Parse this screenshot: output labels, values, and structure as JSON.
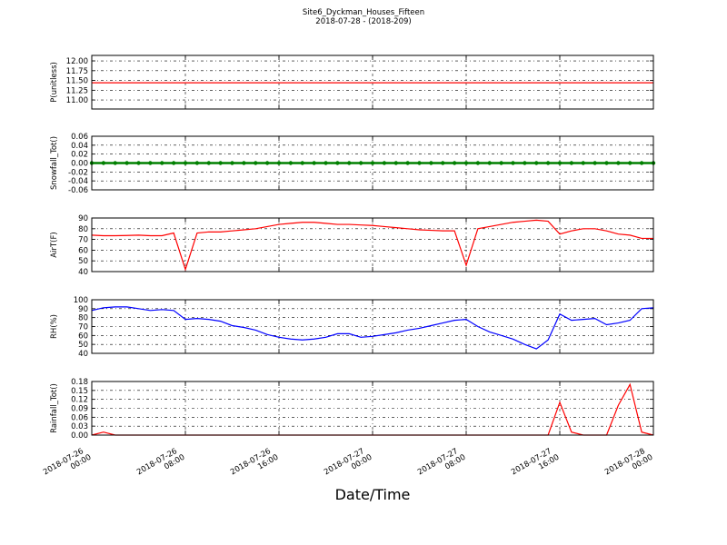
{
  "figure": {
    "title": "Site6_Dyckman_Houses_Fifteen",
    "subtitle": "2018-07-28 - (2018-209)",
    "xlabel": "Date/Time",
    "xlim": [
      "2018-07-26 00:00",
      "2018-07-28 00:00"
    ],
    "xticks": [
      {
        "value": "2018-07-26 00:00",
        "label": [
          "2018-07-26",
          "00:00"
        ]
      },
      {
        "value": "2018-07-26 08:00",
        "label": [
          "2018-07-26",
          "08:00"
        ]
      },
      {
        "value": "2018-07-26 16:00",
        "label": [
          "2018-07-26",
          "16:00"
        ]
      },
      {
        "value": "2018-07-27 00:00",
        "label": [
          "2018-07-27",
          "00:00"
        ]
      },
      {
        "value": "2018-07-27 08:00",
        "label": [
          "2018-07-27",
          "08:00"
        ]
      },
      {
        "value": "2018-07-27 16:00",
        "label": [
          "2018-07-27",
          "16:00"
        ]
      },
      {
        "value": "2018-07-28 00:00",
        "label": [
          "2018-07-28",
          "00:00"
        ]
      }
    ],
    "x": [
      "2018-07-26 00:00",
      "2018-07-26 01:00",
      "2018-07-26 02:00",
      "2018-07-26 03:00",
      "2018-07-26 04:00",
      "2018-07-26 05:00",
      "2018-07-26 06:00",
      "2018-07-26 07:00",
      "2018-07-26 08:00",
      "2018-07-26 09:00",
      "2018-07-26 10:00",
      "2018-07-26 11:00",
      "2018-07-26 12:00",
      "2018-07-26 13:00",
      "2018-07-26 14:00",
      "2018-07-26 15:00",
      "2018-07-26 16:00",
      "2018-07-26 17:00",
      "2018-07-26 18:00",
      "2018-07-26 19:00",
      "2018-07-26 20:00",
      "2018-07-26 21:00",
      "2018-07-26 22:00",
      "2018-07-26 23:00",
      "2018-07-27 00:00",
      "2018-07-27 01:00",
      "2018-07-27 02:00",
      "2018-07-27 03:00",
      "2018-07-27 04:00",
      "2018-07-27 05:00",
      "2018-07-27 06:00",
      "2018-07-27 07:00",
      "2018-07-27 08:00",
      "2018-07-27 09:00",
      "2018-07-27 10:00",
      "2018-07-27 11:00",
      "2018-07-27 12:00",
      "2018-07-27 13:00",
      "2018-07-27 14:00",
      "2018-07-27 15:00",
      "2018-07-27 16:00",
      "2018-07-27 17:00",
      "2018-07-27 18:00",
      "2018-07-27 19:00",
      "2018-07-27 20:00",
      "2018-07-27 21:00",
      "2018-07-27 22:00",
      "2018-07-27 23:00",
      "2018-07-28 00:00"
    ]
  },
  "chart_data": [
    {
      "type": "line",
      "ylabel": "P(unitless)",
      "ylim": [
        10.77,
        12.14
      ],
      "grid": true,
      "yticks": [
        {
          "value": 11.0,
          "label": "11.00"
        },
        {
          "value": 11.25,
          "label": "11.25"
        },
        {
          "value": 11.5,
          "label": "11.50"
        },
        {
          "value": 11.75,
          "label": "11.75"
        },
        {
          "value": 12.0,
          "label": "12.00"
        }
      ],
      "series": [
        {
          "color": "#ff0000",
          "values": [
            11.44,
            11.44,
            11.44,
            11.44,
            11.44,
            11.44,
            11.44,
            11.44,
            11.44,
            11.44,
            11.44,
            11.44,
            11.44,
            11.44,
            11.44,
            11.44,
            11.44,
            11.44,
            11.44,
            11.44,
            11.44,
            11.44,
            11.44,
            11.44,
            11.44,
            11.44,
            11.44,
            11.44,
            11.44,
            11.44,
            11.44,
            11.44,
            11.44,
            11.44,
            11.44,
            11.44,
            11.44,
            11.44,
            11.44,
            11.44,
            11.44,
            11.44,
            11.44,
            11.44,
            11.44,
            11.44,
            11.44,
            11.44,
            11.44
          ]
        }
      ]
    },
    {
      "type": "line",
      "ylabel": "Snowfall_Tot()",
      "ylim": [
        -0.06,
        0.06
      ],
      "grid": true,
      "markers": true,
      "yticks": [
        {
          "value": -0.06,
          "label": "-0.06"
        },
        {
          "value": -0.04,
          "label": "-0.04"
        },
        {
          "value": -0.02,
          "label": "-0.02"
        },
        {
          "value": 0,
          "label": "0.00"
        },
        {
          "value": 0.02,
          "label": "0.02"
        },
        {
          "value": 0.04,
          "label": "0.04"
        },
        {
          "value": 0.06,
          "label": "0.06"
        }
      ],
      "series": [
        {
          "color": "#008000",
          "values": [
            0,
            0,
            0,
            0,
            0,
            0,
            0,
            0,
            0,
            0,
            0,
            0,
            0,
            0,
            0,
            0,
            0,
            0,
            0,
            0,
            0,
            0,
            0,
            0,
            0,
            0,
            0,
            0,
            0,
            0,
            0,
            0,
            0,
            0,
            0,
            0,
            0,
            0,
            0,
            0,
            0,
            0,
            0,
            0,
            0,
            0,
            0,
            0,
            0
          ]
        }
      ]
    },
    {
      "type": "line",
      "ylabel": "AirT(F)",
      "ylim": [
        40,
        90
      ],
      "grid": true,
      "yticks": [
        40,
        50,
        60,
        70,
        80,
        90
      ],
      "series": [
        {
          "color": "#ff0000",
          "values": [
            74,
            73.5,
            73.5,
            73.7,
            74,
            73.5,
            73.5,
            76,
            42,
            76,
            77,
            77,
            78,
            79,
            80,
            82,
            84,
            85,
            86,
            86,
            85,
            84,
            84,
            83.5,
            83,
            82,
            81,
            80,
            79,
            78.5,
            78,
            78,
            46,
            80,
            82,
            84,
            86,
            87,
            88,
            87,
            75,
            78,
            80,
            80,
            78,
            75,
            74,
            71,
            71
          ]
        }
      ]
    },
    {
      "type": "line",
      "ylabel": "RH(%)",
      "ylim": [
        40,
        100
      ],
      "grid": true,
      "yticks": [
        40,
        50,
        60,
        70,
        80,
        90,
        100
      ],
      "series": [
        {
          "color": "#0000ff",
          "values": [
            88,
            91,
            92,
            92,
            90,
            88,
            89,
            88,
            78,
            79,
            78,
            76,
            71,
            69,
            66,
            61,
            58,
            56,
            55,
            56,
            58,
            62,
            62,
            58,
            59,
            61,
            63,
            66,
            68,
            71,
            74,
            77,
            78,
            70,
            64,
            60,
            56,
            50,
            45,
            55,
            84,
            77,
            78,
            79,
            72,
            74,
            77,
            90,
            91
          ]
        }
      ]
    },
    {
      "type": "line",
      "ylabel": "Rainfall_Tot()",
      "ylim": [
        0,
        0.18
      ],
      "grid": true,
      "yticks": [
        {
          "value": 0,
          "label": "0.00"
        },
        {
          "value": 0.03,
          "label": "0.03"
        },
        {
          "value": 0.06,
          "label": "0.06"
        },
        {
          "value": 0.09,
          "label": "0.09"
        },
        {
          "value": 0.12,
          "label": "0.12"
        },
        {
          "value": 0.15,
          "label": "0.15"
        },
        {
          "value": 0.18,
          "label": "0.18"
        }
      ],
      "series": [
        {
          "color": "#ff0000",
          "values": [
            0,
            0.01,
            0,
            0,
            0,
            0,
            0,
            0,
            0,
            0,
            0,
            0,
            0,
            0,
            0,
            0,
            0,
            0,
            0,
            0,
            0,
            0,
            0,
            0,
            0,
            0,
            0,
            0,
            0,
            0,
            0,
            0,
            0,
            0,
            0,
            0,
            0,
            0,
            0,
            0,
            0.11,
            0.01,
            0,
            0,
            0,
            0.1,
            0.17,
            0.01,
            0
          ]
        }
      ]
    }
  ]
}
